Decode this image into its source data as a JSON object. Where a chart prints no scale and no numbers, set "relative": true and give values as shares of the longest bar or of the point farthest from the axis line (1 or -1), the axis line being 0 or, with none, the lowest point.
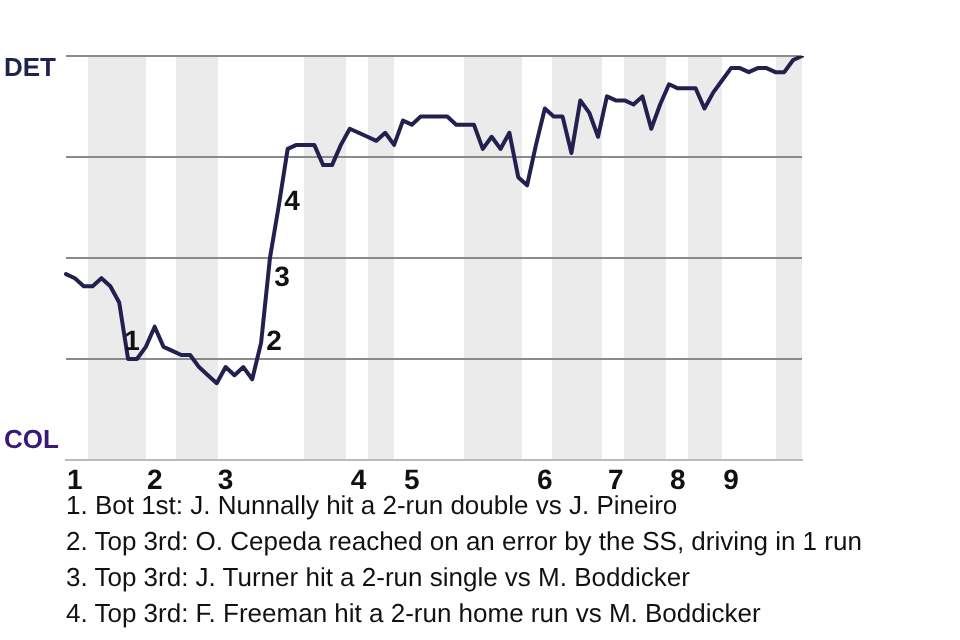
{
  "chart_data": {
    "type": "line",
    "relative": true,
    "categories": [
      null,
      "1",
      null,
      null,
      null,
      null,
      null,
      null,
      null,
      null,
      "2",
      null,
      null,
      null,
      null,
      null,
      null,
      null,
      "3",
      null,
      null,
      null,
      null,
      null,
      null,
      null,
      null,
      null,
      null,
      null,
      null,
      null,
      null,
      "4",
      null,
      null,
      null,
      null,
      null,
      "5",
      null,
      null,
      null,
      null,
      null,
      null,
      null,
      null,
      null,
      null,
      null,
      null,
      null,
      null,
      "6",
      null,
      null,
      null,
      null,
      null,
      null,
      null,
      "7",
      null,
      null,
      null,
      null,
      null,
      null,
      "8",
      null,
      null,
      null,
      null,
      null,
      "9",
      null,
      null,
      null,
      null,
      null,
      null,
      null,
      null
    ],
    "series": [
      {
        "color": "#22204f",
        "values": [
          0.46,
          0.45,
          0.43,
          0.43,
          0.45,
          0.43,
          0.39,
          0.25,
          0.25,
          0.28,
          0.33,
          0.28,
          0.27,
          0.26,
          0.26,
          0.23,
          0.21,
          0.19,
          0.23,
          0.21,
          0.23,
          0.2,
          0.29,
          0.5,
          0.63,
          0.77,
          0.78,
          0.78,
          0.78,
          0.73,
          0.73,
          0.78,
          0.82,
          0.81,
          0.8,
          0.79,
          0.81,
          0.78,
          0.84,
          0.83,
          0.85,
          0.85,
          0.85,
          0.85,
          0.83,
          0.83,
          0.83,
          0.77,
          0.8,
          0.77,
          0.81,
          0.7,
          0.68,
          0.78,
          0.87,
          0.85,
          0.85,
          0.76,
          0.89,
          0.86,
          0.8,
          0.9,
          0.89,
          0.89,
          0.88,
          0.9,
          0.82,
          0.88,
          0.93,
          0.92,
          0.92,
          0.92,
          0.87,
          0.91,
          0.94,
          0.97,
          0.97,
          0.96,
          0.97,
          0.97,
          0.96,
          0.96,
          0.99,
          1.0
        ]
      }
    ],
    "legend": false,
    "marker": "none",
    "line_style": "solid",
    "ref_lines": [
      {
        "axis": "y",
        "value": 0.25,
        "color": "#8a8a8a"
      },
      {
        "axis": "y",
        "value": 0.5,
        "color": "#8a8a8a"
      },
      {
        "axis": "y",
        "value": 0.75,
        "color": "#8a8a8a"
      },
      {
        "axis": "y",
        "value": 1,
        "color": "#8a8a8a"
      }
    ],
    "annotations": [
      "DET",
      "COL",
      "1",
      "2",
      "3",
      "4",
      "1. Bot 1st: J. Nunnally hit a 2-run double vs J. Pineiro",
      "2. Top 3rd: O. Cepeda reached on an error by the SS, driving in 1 run",
      "3. Top 3rd: J. Turner hit a 2-run single vs M. Boddicker",
      "4. Top 3rd: F. Freeman hit a 2-run home run vs M. Boddicker"
    ]
  }
}
